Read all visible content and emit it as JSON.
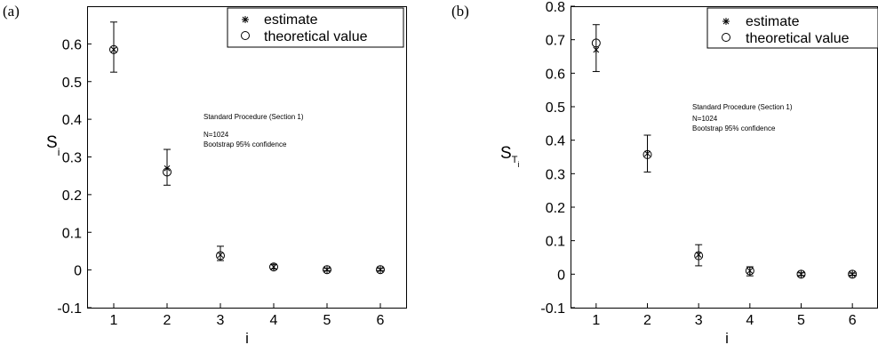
{
  "charts": [
    {
      "panel_label": "(a)",
      "ylabel_main": "S",
      "ylabel_sub": "i",
      "ylabel_subsub": "",
      "xlabel": "i",
      "legend": {
        "estimate": "estimate",
        "theoretical": "theoretical value"
      },
      "annotation": [
        "Standard Procedure (Section 1)",
        "N=1024",
        "Bootstrap 95% confidence"
      ]
    },
    {
      "panel_label": "(b)",
      "ylabel_main": "S",
      "ylabel_sub": "T",
      "ylabel_subsub": "i",
      "xlabel": "i",
      "legend": {
        "estimate": "estimate",
        "theoretical": "theoretical value"
      },
      "annotation": [
        "Standard Procedure (Section 1)",
        "N=1024",
        "Bootstrap 95% confidence"
      ]
    }
  ],
  "chart_data": [
    {
      "type": "scatter",
      "xlabel": "i",
      "ylabel": "S_i",
      "x": [
        1,
        2,
        3,
        4,
        5,
        6
      ],
      "xlim": [
        0.5,
        6.5
      ],
      "ylim": [
        -0.1,
        0.7
      ],
      "xticks": [
        "1",
        "2",
        "3",
        "4",
        "5",
        "6"
      ],
      "yticks": [
        "-0.1",
        "0",
        "0.1",
        "0.2",
        "0.3",
        "0.4",
        "0.5",
        "0.6"
      ],
      "grid": false,
      "legend_position": "top-right",
      "series": [
        {
          "name": "estimate",
          "marker": "asterisk",
          "values": [
            0.585,
            0.27,
            0.04,
            0.008,
            0.001,
            0.001
          ]
        },
        {
          "name": "theoretical value",
          "marker": "circle",
          "values": [
            0.585,
            0.26,
            0.038,
            0.008,
            0.001,
            0.001
          ]
        }
      ],
      "error_bars": {
        "lower": [
          0.525,
          0.225,
          0.025,
          0.003,
          -0.002,
          -0.002
        ],
        "upper": [
          0.658,
          0.32,
          0.063,
          0.015,
          0.004,
          0.004
        ]
      }
    },
    {
      "type": "scatter",
      "xlabel": "i",
      "ylabel": "S_Ti",
      "x": [
        1,
        2,
        3,
        4,
        5,
        6
      ],
      "xlim": [
        0.5,
        6.5
      ],
      "ylim": [
        -0.1,
        0.8
      ],
      "xticks": [
        "1",
        "2",
        "3",
        "4",
        "5",
        "6"
      ],
      "yticks": [
        "-0.1",
        "0",
        "0.1",
        "0.2",
        "0.3",
        "0.4",
        "0.5",
        "0.6",
        "0.7",
        "0.8"
      ],
      "grid": false,
      "legend_position": "top-right",
      "series": [
        {
          "name": "estimate",
          "marker": "asterisk",
          "values": [
            0.67,
            0.36,
            0.058,
            0.01,
            0.0,
            0.0
          ]
        },
        {
          "name": "theoretical value",
          "marker": "circle",
          "values": [
            0.69,
            0.357,
            0.055,
            0.01,
            0.0,
            0.0
          ]
        }
      ],
      "error_bars": {
        "lower": [
          0.605,
          0.305,
          0.025,
          -0.005,
          -0.004,
          -0.003
        ],
        "upper": [
          0.745,
          0.415,
          0.088,
          0.022,
          0.004,
          0.003
        ]
      }
    }
  ]
}
